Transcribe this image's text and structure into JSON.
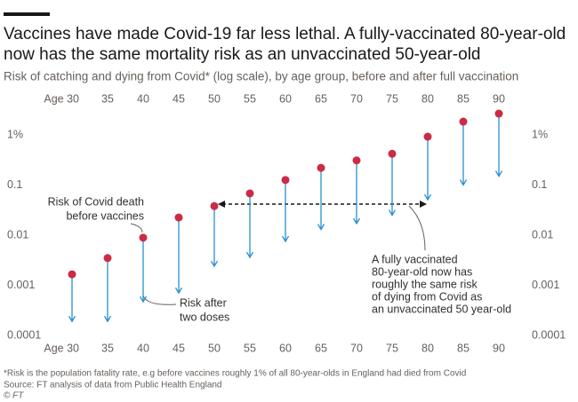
{
  "chart_data": {
    "type": "dot-arrow",
    "title_lines": [
      "Vaccines have made Covid-19 far less lethal. A fully-vaccinated 80-year-old",
      "now has the same mortality risk as an unvaccinated 50-year-old"
    ],
    "subtitle": "Risk of catching and dying from Covid* (log scale), by age group, before and after full vaccination",
    "categories": [
      "Age 30",
      "35",
      "40",
      "45",
      "50",
      "55",
      "60",
      "65",
      "70",
      "75",
      "80",
      "85",
      "90"
    ],
    "series": [
      {
        "color": "#cc2b45",
        "values": [
          0.00166,
          0.0035,
          0.0089,
          0.0225,
          0.038,
          0.068,
          0.126,
          0.22,
          0.31,
          0.42,
          0.92,
          1.84,
          2.66
        ]
      },
      {
        "color": "#2a8fd0",
        "values": [
          0.00019,
          0.00019,
          0.00047,
          0.0007,
          0.0024,
          0.0036,
          0.0075,
          0.013,
          0.017,
          0.025,
          0.051,
          0.1,
          0.15
        ]
      }
    ],
    "log_scale": true,
    "ylim": [
      0.0001,
      4
    ],
    "yticks": [
      {
        "value": 1,
        "label": "1%"
      },
      0.1,
      0.01,
      0.001,
      0.0001
    ],
    "annotations": {
      "before": [
        "Risk of Covid death",
        "before vaccines"
      ],
      "after": [
        "Risk after",
        "two doses"
      ],
      "note": [
        "A fully vaccinated",
        "80-year-old now has",
        "roughly the same risk",
        "of dying from Covid as",
        "an unvaccinated 50 year-old"
      ]
    },
    "footnote": "*Risk is the population fatality rate, e.g before vaccines roughly 1% of all 80-year-olds in England had died from Covid",
    "source": "Source: FT analysis of data from Public Health England",
    "credit": "© FT"
  }
}
